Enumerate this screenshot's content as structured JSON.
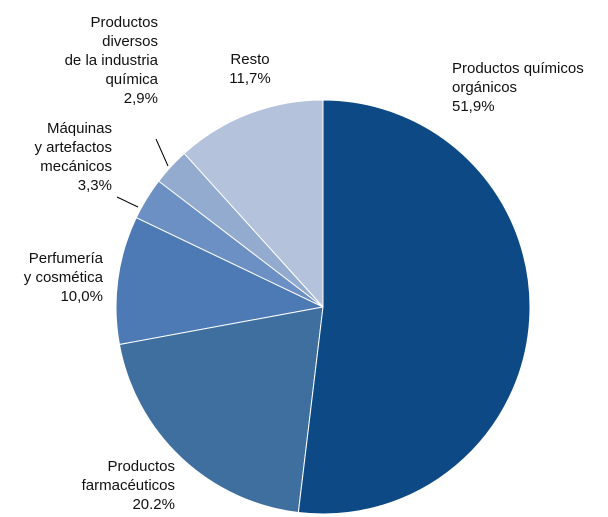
{
  "chart_data": {
    "type": "pie",
    "categories": [
      "Productos químicos\norgánicos",
      "Productos\nfarmacéuticos",
      "Perfumería\ny cosmética",
      "Máquinas\ny artefactos\nmecánicos",
      "Productos\ndiversos\nde la industria\nquímica",
      "Resto"
    ],
    "values": [
      51.9,
      20.2,
      10.0,
      3.3,
      2.9,
      11.7
    ],
    "value_labels": [
      "51,9%",
      "20.2%",
      "10,0%",
      "3,3%",
      "2,9%",
      "11,7%"
    ],
    "colors": [
      "#0d4a85",
      "#3f6f9f",
      "#4d7ab5",
      "#6c8fc4",
      "#93abcf",
      "#b4c3db"
    ]
  }
}
